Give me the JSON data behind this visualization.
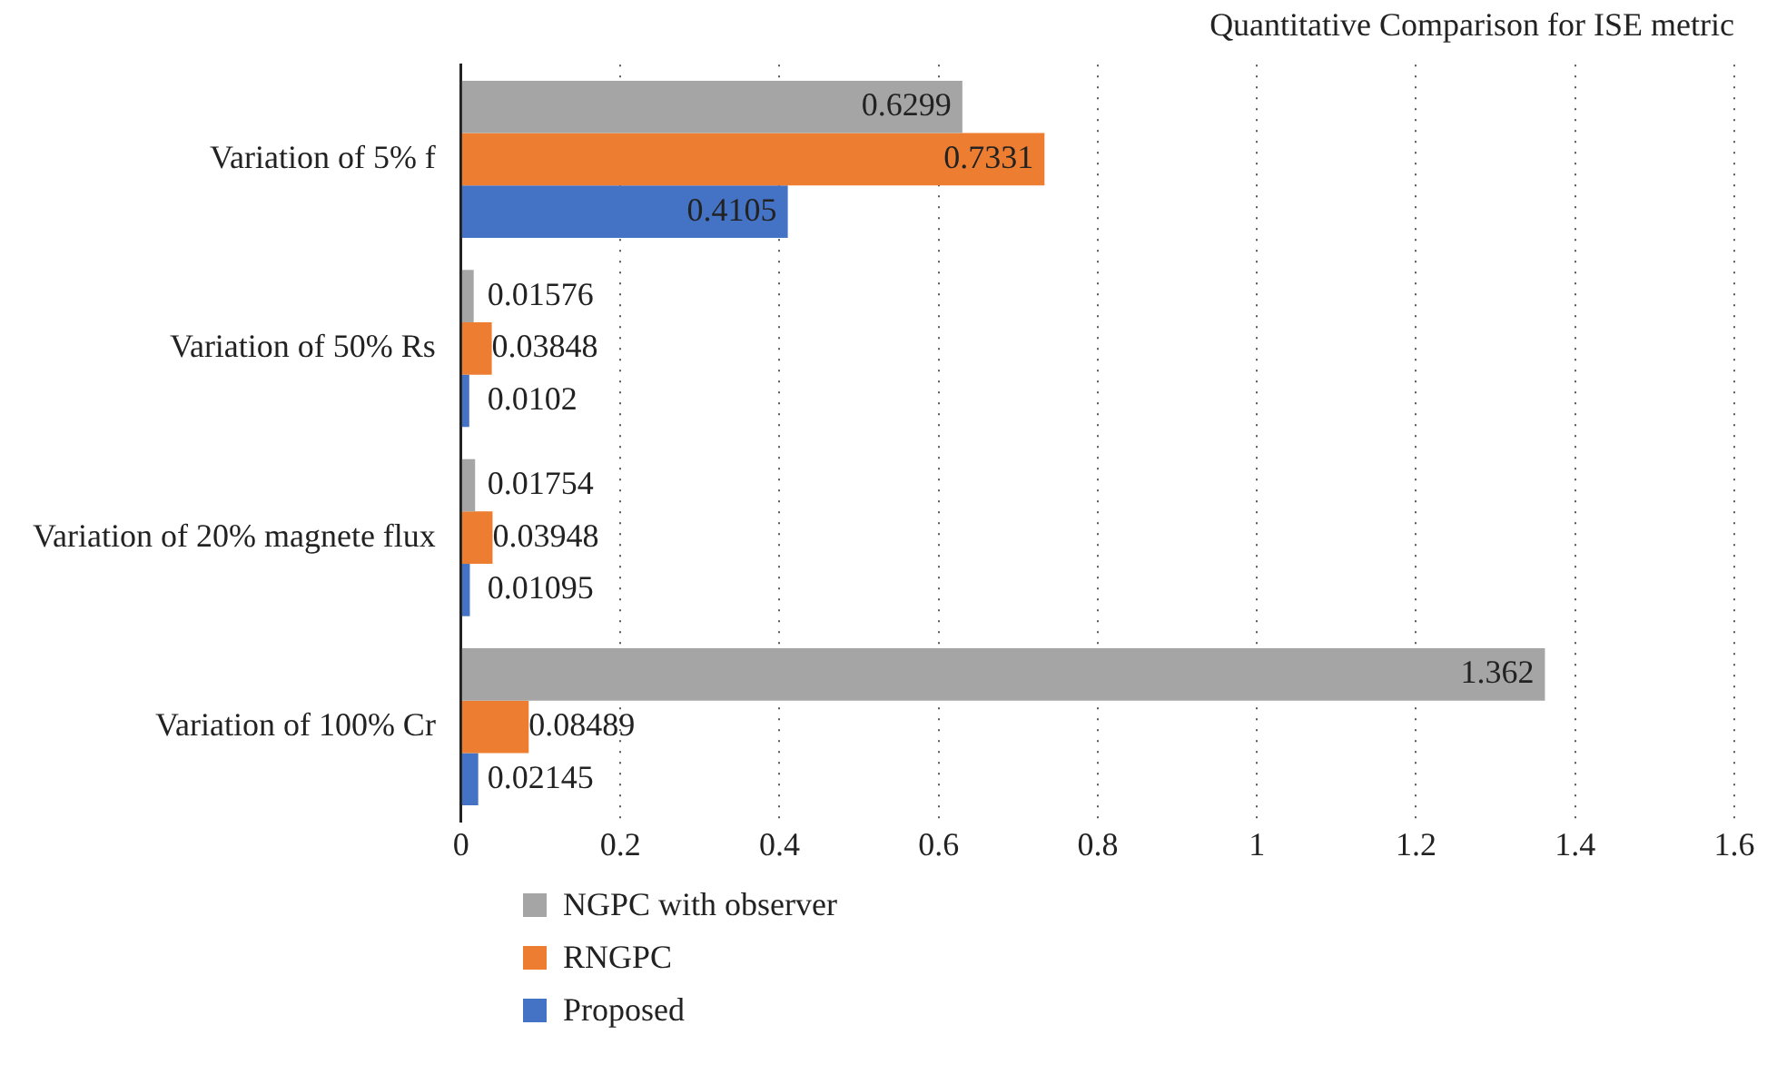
{
  "chart_data": {
    "type": "bar",
    "orientation": "horizontal",
    "title": "Quantitative Comparison for ISE metric",
    "categories": [
      "Variation of 5% f",
      "Variation of 50% Rs",
      "Variation of 20% magnete flux",
      "Variation of 100% Cr"
    ],
    "series": [
      {
        "name": "NGPC with observer",
        "color": "#a5a5a5",
        "values": [
          0.6299,
          0.01576,
          0.01754,
          1.362
        ]
      },
      {
        "name": "RNGPC",
        "color": "#ed7d31",
        "values": [
          0.7331,
          0.03848,
          0.03948,
          0.08489
        ]
      },
      {
        "name": "Proposed",
        "color": "#4472c4",
        "values": [
          0.4105,
          0.0102,
          0.01095,
          0.02145
        ]
      }
    ],
    "xlim": [
      0,
      1.6
    ],
    "xticks": [
      0,
      0.2,
      0.4,
      0.6,
      0.8,
      1,
      1.2,
      1.4,
      1.6
    ],
    "grid": "x",
    "data_labels": true,
    "legend": "bottom left"
  }
}
